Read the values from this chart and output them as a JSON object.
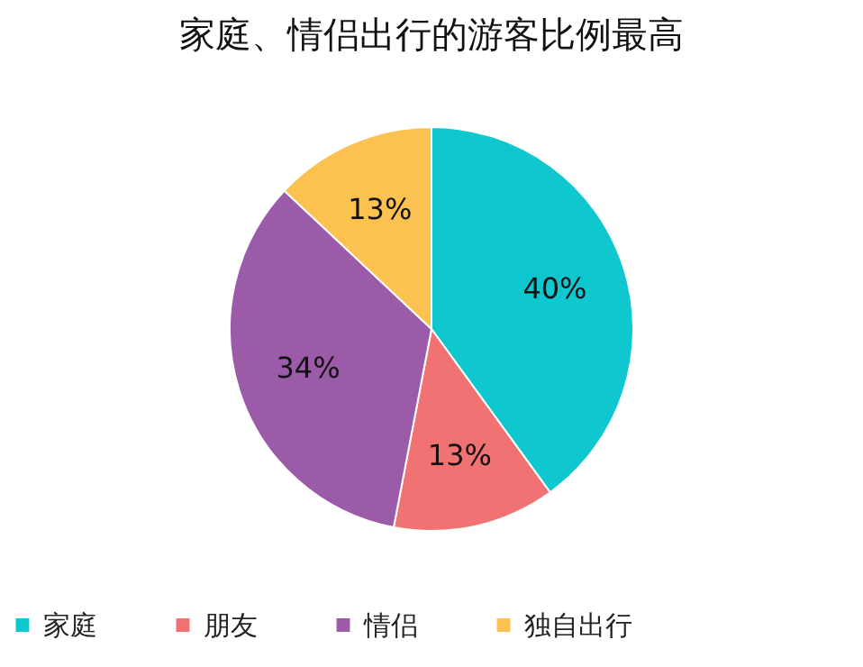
{
  "chart_data": {
    "type": "pie",
    "title": "家庭、情侣出行的游客比例最高",
    "categories": [
      "家庭",
      "朋友",
      "情侣",
      "独自出行"
    ],
    "values": [
      40,
      13,
      34,
      13
    ],
    "colors": [
      "#0fc7cf",
      "#f07272",
      "#9b5ba8",
      "#fcc250"
    ],
    "value_labels": [
      "40%",
      "13%",
      "34%",
      "13%"
    ],
    "legend": "bottom"
  }
}
